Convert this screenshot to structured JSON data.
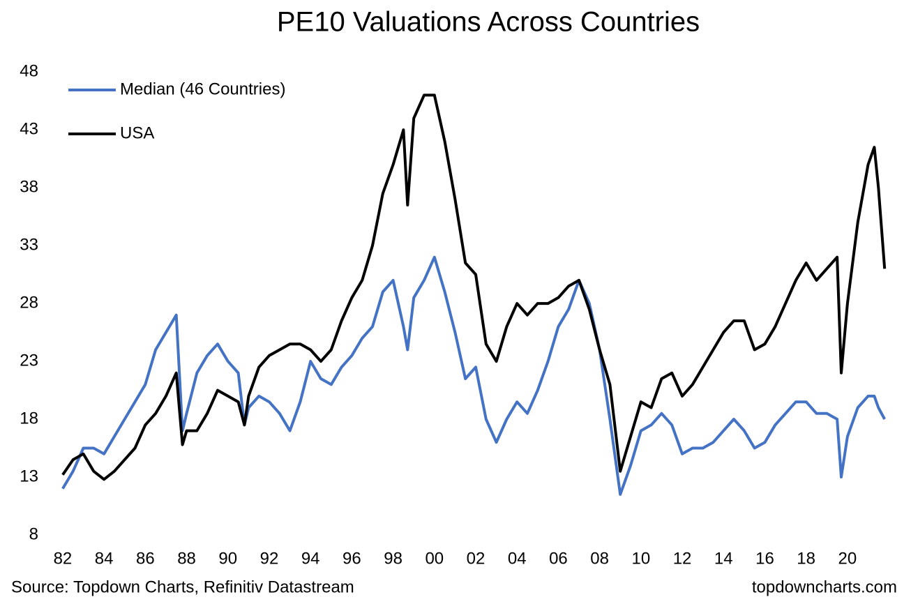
{
  "chart_data": {
    "type": "line",
    "title": "PE10 Valuations Across Countries",
    "source": "Source: Topdown Charts, Refinitiv Datastream",
    "website": "topdowncharts.com",
    "legend": "upper left",
    "grid": false,
    "x": [
      1982.0,
      1982.5,
      1983.0,
      1983.5,
      1984.0,
      1984.5,
      1985.0,
      1985.5,
      1986.0,
      1986.5,
      1987.0,
      1987.5,
      1987.8,
      1988.0,
      1988.5,
      1989.0,
      1989.5,
      1990.0,
      1990.5,
      1990.8,
      1991.0,
      1991.5,
      1992.0,
      1992.5,
      1993.0,
      1993.5,
      1994.0,
      1994.5,
      1995.0,
      1995.5,
      1996.0,
      1996.5,
      1997.0,
      1997.5,
      1998.0,
      1998.5,
      1998.7,
      1999.0,
      1999.5,
      2000.0,
      2000.5,
      2001.0,
      2001.5,
      2002.0,
      2002.5,
      2003.0,
      2003.5,
      2004.0,
      2004.5,
      2005.0,
      2005.5,
      2006.0,
      2006.5,
      2007.0,
      2007.5,
      2008.0,
      2008.5,
      2009.0,
      2009.5,
      2010.0,
      2010.5,
      2011.0,
      2011.5,
      2012.0,
      2012.5,
      2013.0,
      2013.5,
      2014.0,
      2014.5,
      2015.0,
      2015.5,
      2016.0,
      2016.5,
      2017.0,
      2017.5,
      2018.0,
      2018.5,
      2019.0,
      2019.5,
      2019.7,
      2020.0,
      2020.5,
      2021.0,
      2021.3,
      2021.5,
      2021.8
    ],
    "series": [
      {
        "name": "Median (46 Countries)",
        "color": "#4472c4",
        "values": [
          12,
          13.5,
          15.5,
          15.5,
          15,
          16.5,
          18,
          19.5,
          21,
          24,
          25.5,
          27,
          17,
          18.5,
          22,
          23.5,
          24.5,
          23,
          22,
          17.5,
          19,
          20,
          19.5,
          18.5,
          17,
          19.5,
          23,
          21.5,
          21,
          22.5,
          23.5,
          25,
          26,
          29,
          30,
          26,
          24,
          28.5,
          30,
          32,
          29,
          25.5,
          21.5,
          22.5,
          18,
          16,
          18,
          19.5,
          18.5,
          20.5,
          23,
          26,
          27.5,
          30,
          28,
          24,
          18,
          11.5,
          14,
          17,
          17.5,
          18.5,
          17.5,
          15,
          15.5,
          15.5,
          16,
          17,
          18,
          17,
          15.5,
          16,
          17.5,
          18.5,
          19.5,
          19.5,
          18.5,
          18.5,
          18,
          13,
          16.5,
          19,
          20,
          20,
          19,
          18
        ]
      },
      {
        "name": "USA",
        "color": "#000000",
        "values": [
          13.2,
          14.5,
          15,
          13.5,
          12.8,
          13.5,
          14.5,
          15.5,
          17.5,
          18.5,
          20,
          22,
          15.8,
          17,
          17,
          18.5,
          20.5,
          20,
          19.5,
          17.5,
          20,
          22.5,
          23.5,
          24,
          24.5,
          24.5,
          24,
          23,
          24,
          26.5,
          28.5,
          30,
          33,
          37.5,
          40,
          43,
          36.5,
          44,
          46,
          46,
          42,
          37,
          31.5,
          30.5,
          24.5,
          23,
          26,
          28,
          27,
          28,
          28,
          28.5,
          29.5,
          30,
          27.5,
          24,
          21,
          13.5,
          16.5,
          19.5,
          19,
          21.5,
          22,
          20,
          21,
          22.5,
          24,
          25.5,
          26.5,
          26.5,
          24,
          24.5,
          26,
          28,
          30,
          31.5,
          30,
          31,
          32,
          22,
          28,
          35,
          40,
          41.5,
          38,
          31
        ]
      }
    ],
    "xlim": [
      1981.8,
      2022.2
    ],
    "xticks": [
      {
        "value": 1982,
        "label": "82"
      },
      {
        "value": 1984,
        "label": "84"
      },
      {
        "value": 1986,
        "label": "86"
      },
      {
        "value": 1988,
        "label": "88"
      },
      {
        "value": 1990,
        "label": "90"
      },
      {
        "value": 1992,
        "label": "92"
      },
      {
        "value": 1994,
        "label": "94"
      },
      {
        "value": 1996,
        "label": "96"
      },
      {
        "value": 1998,
        "label": "98"
      },
      {
        "value": 2000,
        "label": "00"
      },
      {
        "value": 2002,
        "label": "02"
      },
      {
        "value": 2004,
        "label": "04"
      },
      {
        "value": 2006,
        "label": "06"
      },
      {
        "value": 2008,
        "label": "08"
      },
      {
        "value": 2010,
        "label": "10"
      },
      {
        "value": 2012,
        "label": "12"
      },
      {
        "value": 2014,
        "label": "14"
      },
      {
        "value": 2016,
        "label": "16"
      },
      {
        "value": 2018,
        "label": "18"
      },
      {
        "value": 2020,
        "label": "20"
      }
    ],
    "ylim": [
      8,
      50
    ],
    "yticks": [
      8,
      13,
      18,
      23,
      28,
      33,
      38,
      43,
      48
    ]
  }
}
